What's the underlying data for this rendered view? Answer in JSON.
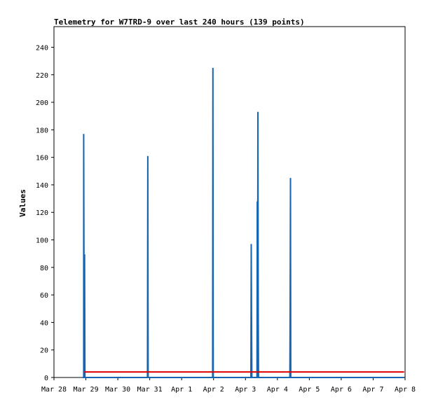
{
  "chart_data": {
    "type": "line",
    "title": "Telemetry for W7TRD-9 over last 240 hours (139 points)",
    "xlabel": "",
    "ylabel": "Values",
    "ylim": [
      0,
      255
    ],
    "y_ticks": [
      0,
      20,
      40,
      60,
      80,
      100,
      120,
      140,
      160,
      180,
      200,
      220,
      240
    ],
    "x_ticks": [
      "Mar 28",
      "Mar 29",
      "Mar 30",
      "Mar 31",
      "Apr 1",
      "Apr 2",
      "Apr 3",
      "Apr 4",
      "Apr 5",
      "Apr 6",
      "Apr 7",
      "Apr 8"
    ],
    "xlim": [
      0,
      11
    ],
    "grid": false,
    "series": [
      {
        "color": "#1565b0",
        "points": [
          [
            0.9,
            0
          ],
          [
            0.93,
            0
          ],
          [
            0.93,
            177
          ],
          [
            0.94,
            89
          ],
          [
            0.96,
            89
          ],
          [
            0.97,
            0
          ],
          [
            2.93,
            0
          ],
          [
            2.94,
            161
          ],
          [
            2.95,
            0
          ],
          [
            4.97,
            0
          ],
          [
            4.98,
            225
          ],
          [
            4.99,
            0
          ],
          [
            6.17,
            0
          ],
          [
            6.18,
            97
          ],
          [
            6.19,
            49
          ],
          [
            6.2,
            0
          ],
          [
            6.36,
            0
          ],
          [
            6.37,
            128
          ],
          [
            6.38,
            0
          ],
          [
            6.39,
            193
          ],
          [
            6.4,
            49
          ],
          [
            6.41,
            0
          ],
          [
            7.39,
            0
          ],
          [
            7.4,
            49
          ],
          [
            7.41,
            145
          ],
          [
            7.42,
            0
          ],
          [
            10.97,
            0
          ]
        ]
      },
      {
        "color": "#dd0000",
        "points": [
          [
            0.95,
            4
          ],
          [
            10.97,
            4
          ]
        ]
      }
    ]
  }
}
